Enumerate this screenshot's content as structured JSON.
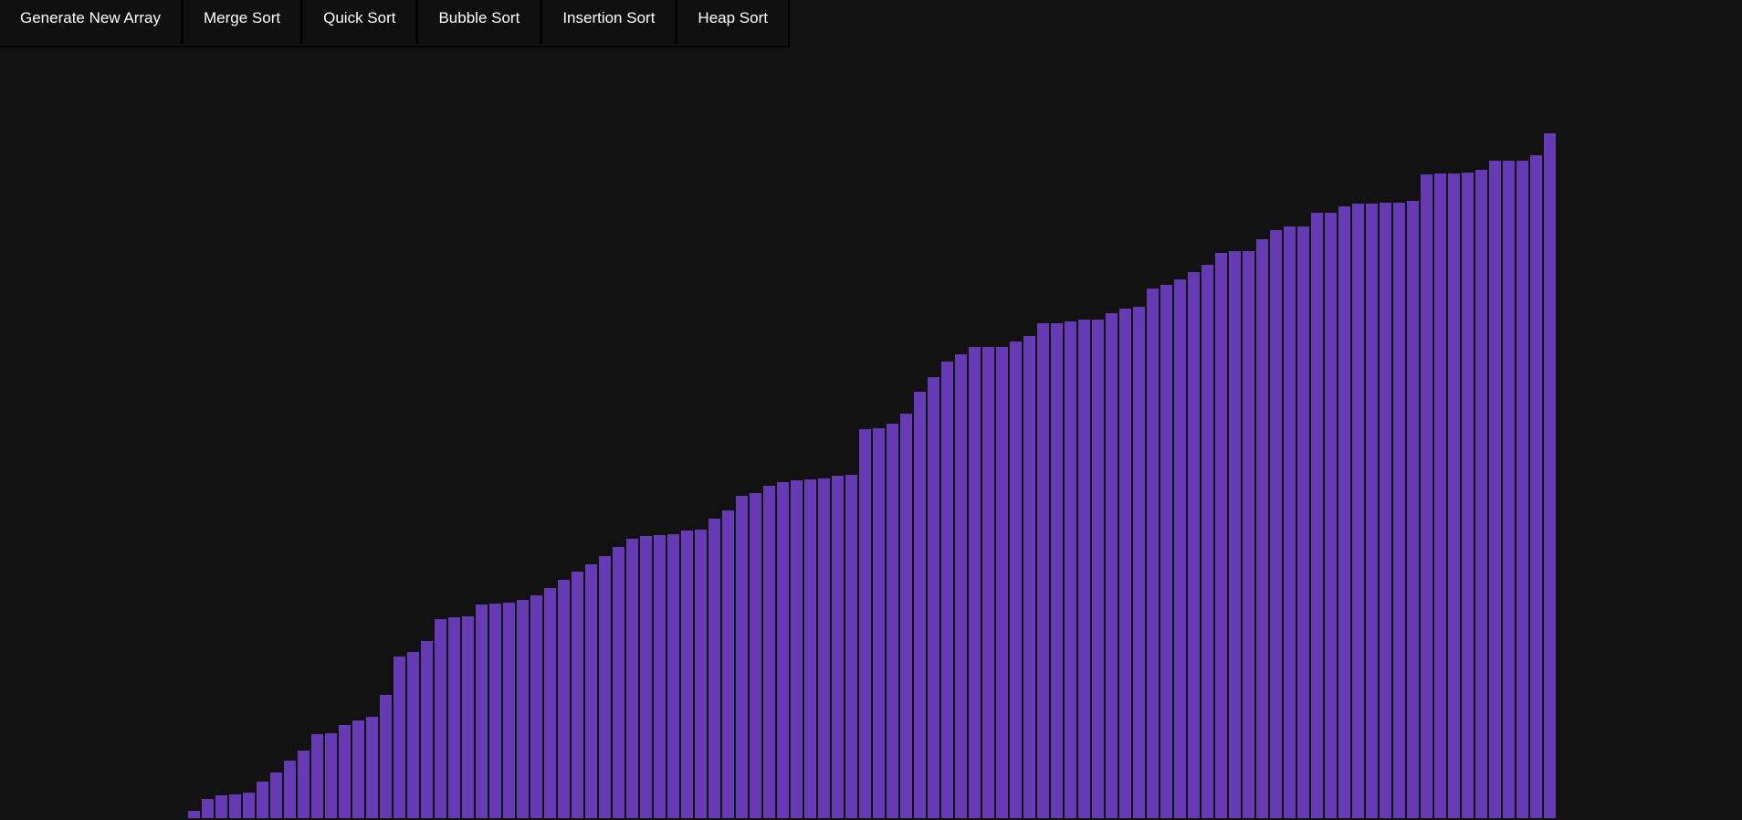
{
  "toolbar": {
    "buttons": [
      "Generate New Array",
      "Merge Sort",
      "Quick Sort",
      "Bubble Sort",
      "Insertion Sort",
      "Heap Sort"
    ]
  },
  "colors": {
    "background": "#121212",
    "bar": "#663ab3",
    "bar_border": "#000000",
    "button_bg": "#0f0f0f",
    "button_text": "#ffffff"
  },
  "array": {
    "max_value": 752,
    "values": [
      8,
      21,
      25,
      26,
      28,
      40,
      50,
      63,
      74,
      92,
      93,
      102,
      107,
      111,
      135,
      177,
      182,
      195,
      219,
      221,
      222,
      235,
      236,
      237,
      240,
      245,
      253,
      262,
      271,
      279,
      288,
      298,
      307,
      310,
      311,
      312,
      316,
      317,
      329,
      338,
      354,
      357,
      365,
      369,
      371,
      372,
      373,
      376,
      377,
      427,
      428,
      433,
      444,
      468,
      484,
      501,
      509,
      517,
      517,
      517,
      523,
      529,
      543,
      543,
      545,
      547,
      547,
      554,
      559,
      561,
      582,
      586,
      592,
      600,
      608,
      621,
      623,
      623,
      636,
      646,
      650,
      650,
      665,
      665,
      672,
      675,
      675,
      676,
      676,
      678,
      707,
      708,
      708,
      709,
      712,
      722,
      722,
      722,
      728,
      752
    ]
  }
}
